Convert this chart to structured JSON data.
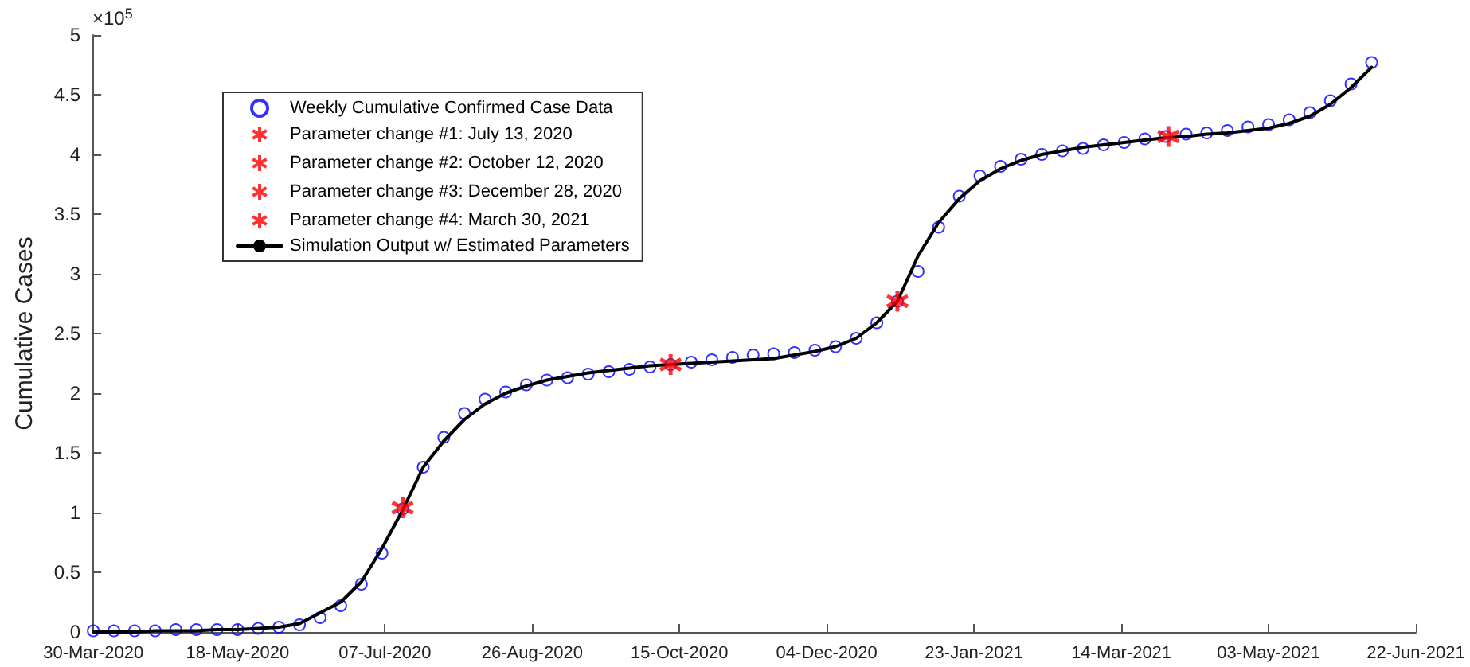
{
  "chart_data": {
    "type": "line",
    "ylabel": "Cumulative Cases",
    "annotations": [
      "×10$^{5}$"
    ],
    "xlim": [
      "2020-03-30",
      "2021-06-22"
    ],
    "xticks": [
      {
        "value": "2020-03-30",
        "label": "30-Mar-2020"
      },
      {
        "value": "2020-05-18",
        "label": "18-May-2020"
      },
      {
        "value": "2020-07-07",
        "label": "07-Jul-2020"
      },
      {
        "value": "2020-08-26",
        "label": "26-Aug-2020"
      },
      {
        "value": "2020-10-15",
        "label": "15-Oct-2020"
      },
      {
        "value": "2020-12-04",
        "label": "04-Dec-2020"
      },
      {
        "value": "2021-01-23",
        "label": "23-Jan-2021"
      },
      {
        "value": "2021-03-14",
        "label": "14-Mar-2021"
      },
      {
        "value": "2021-05-03",
        "label": "03-May-2021"
      },
      {
        "value": "2021-06-22",
        "label": "22-Jun-2021"
      }
    ],
    "ylim": [
      0,
      5
    ],
    "yticks": [
      0,
      0.5,
      1,
      1.5,
      2,
      2.5,
      3,
      3.5,
      4,
      4.5,
      5
    ],
    "grid": false,
    "legend": "top left",
    "x": [
      "2020-03-30",
      "2020-04-06",
      "2020-04-13",
      "2020-04-20",
      "2020-04-27",
      "2020-05-04",
      "2020-05-11",
      "2020-05-18",
      "2020-05-25",
      "2020-06-01",
      "2020-06-08",
      "2020-06-15",
      "2020-06-22",
      "2020-06-29",
      "2020-07-06",
      "2020-07-13",
      "2020-07-20",
      "2020-07-27",
      "2020-08-03",
      "2020-08-10",
      "2020-08-17",
      "2020-08-24",
      "2020-08-31",
      "2020-09-07",
      "2020-09-14",
      "2020-09-21",
      "2020-09-28",
      "2020-10-05",
      "2020-10-12",
      "2020-10-19",
      "2020-10-26",
      "2020-11-02",
      "2020-11-09",
      "2020-11-16",
      "2020-11-23",
      "2020-11-30",
      "2020-12-07",
      "2020-12-14",
      "2020-12-21",
      "2020-12-28",
      "2021-01-04",
      "2021-01-11",
      "2021-01-18",
      "2021-01-25",
      "2021-02-01",
      "2021-02-08",
      "2021-02-15",
      "2021-02-22",
      "2021-03-01",
      "2021-03-08",
      "2021-03-15",
      "2021-03-22",
      "2021-03-29",
      "2021-04-05",
      "2021-04-12",
      "2021-04-19",
      "2021-04-26",
      "2021-05-03",
      "2021-05-10",
      "2021-05-17",
      "2021-05-24",
      "2021-05-31",
      "2021-06-07"
    ],
    "series": [
      {
        "name": "Weekly Cumulative Confirmed Case Data",
        "type": "scatter",
        "marker": "circle",
        "color": "#0000ff",
        "values": [
          0.01,
          0.01,
          0.01,
          0.01,
          0.02,
          0.02,
          0.02,
          0.02,
          0.03,
          0.04,
          0.06,
          0.12,
          0.22,
          0.4,
          0.66,
          1.03,
          1.38,
          1.63,
          1.83,
          1.95,
          2.01,
          2.07,
          2.11,
          2.13,
          2.16,
          2.18,
          2.2,
          2.22,
          2.24,
          2.26,
          2.28,
          2.3,
          2.32,
          2.33,
          2.34,
          2.36,
          2.39,
          2.46,
          2.59,
          2.77,
          3.02,
          3.39,
          3.65,
          3.82,
          3.9,
          3.96,
          4.0,
          4.03,
          4.05,
          4.08,
          4.1,
          4.13,
          4.15,
          4.17,
          4.18,
          4.2,
          4.23,
          4.25,
          4.29,
          4.35,
          4.45,
          4.59,
          4.77
        ]
      },
      {
        "name": "Parameter change #1: July 13, 2020",
        "type": "scatter",
        "marker": "star",
        "color": "#ff0000",
        "x": [
          "2020-07-13"
        ],
        "values": [
          1.04
        ]
      },
      {
        "name": "Parameter change #2: October 12, 2020",
        "type": "scatter",
        "marker": "star",
        "color": "#ff0000",
        "x": [
          "2020-10-12"
        ],
        "values": [
          2.24
        ]
      },
      {
        "name": "Parameter change #3: December 28, 2020",
        "type": "scatter",
        "marker": "star",
        "color": "#ff0000",
        "x": [
          "2020-12-28"
        ],
        "values": [
          2.77
        ]
      },
      {
        "name": "Parameter change #4: March 30, 2021",
        "type": "scatter",
        "marker": "star",
        "color": "#ff0000",
        "x": [
          "2021-03-30"
        ],
        "values": [
          4.15
        ]
      },
      {
        "name": "Simulation Output w/ Estimated Parameters",
        "marker": "none",
        "line_style": "solid",
        "color": "#000000",
        "values": [
          0.0,
          0.0,
          0.0,
          0.01,
          0.01,
          0.01,
          0.02,
          0.02,
          0.03,
          0.04,
          0.07,
          0.16,
          0.25,
          0.42,
          0.7,
          1.02,
          1.38,
          1.6,
          1.78,
          1.91,
          2.0,
          2.06,
          2.11,
          2.14,
          2.17,
          2.19,
          2.21,
          2.23,
          2.24,
          2.25,
          2.26,
          2.27,
          2.28,
          2.29,
          2.32,
          2.35,
          2.39,
          2.46,
          2.59,
          2.77,
          3.15,
          3.43,
          3.63,
          3.78,
          3.88,
          3.95,
          4.0,
          4.03,
          4.06,
          4.08,
          4.1,
          4.12,
          4.14,
          4.15,
          4.17,
          4.18,
          4.2,
          4.22,
          4.26,
          4.32,
          4.42,
          4.56,
          4.73
        ]
      }
    ]
  }
}
